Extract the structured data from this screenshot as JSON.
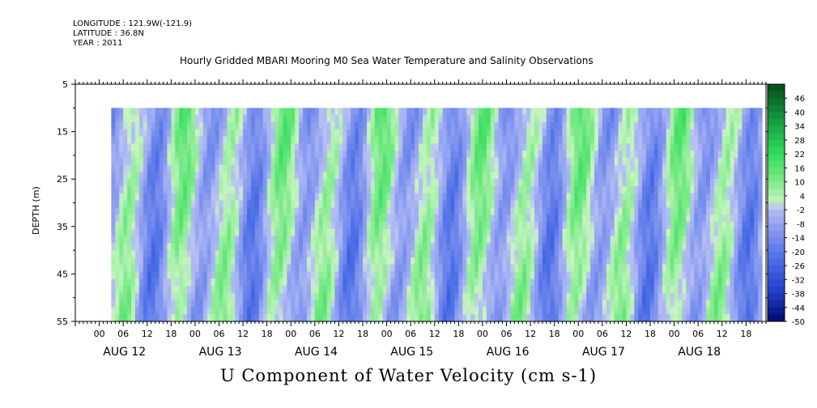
{
  "header": {
    "longitude": "LONGITUDE : 121.9W(-121.9)",
    "latitude": "LATITUDE : 36.8N",
    "year": "YEAR : 2011",
    "title": "Hourly Gridded MBARI Mooring M0 Sea Water Temperature and Salinity Observations"
  },
  "footer_title": "U Component of Water Velocity (cm s-1)",
  "chart_data": {
    "type": "heatmap",
    "title": "Hourly Gridded MBARI Mooring M0 Sea Water Temperature and Salinity Observations",
    "subtitle": "U Component of Water Velocity (cm s-1)",
    "ylabel": "DEPTH (m)",
    "xlabel": "",
    "y_axis": {
      "range": [
        5,
        55
      ],
      "inverted": true,
      "ticks": [
        "5",
        "15",
        "25",
        "35",
        "45",
        "55"
      ],
      "data_range": [
        10,
        55
      ]
    },
    "x_axis": {
      "start": "2011-08-11T18:00",
      "end": "2011-08-18T23:00",
      "hour_ticks": [
        "00",
        "06",
        "12",
        "18",
        "00",
        "06",
        "12",
        "18",
        "00",
        "06",
        "12",
        "18",
        "00",
        "06",
        "12",
        "18",
        "00",
        "06",
        "12",
        "18",
        "00",
        "06",
        "12",
        "18",
        "00",
        "06",
        "12",
        "18"
      ],
      "date_labels": [
        "AUG 12",
        "AUG 13",
        "AUG 14",
        "AUG 15",
        "AUG 16",
        "AUG 17",
        "AUG 18"
      ],
      "data_start": "2011-08-12T03:00"
    },
    "colorbar": {
      "levels": [
        "46",
        "40",
        "34",
        "28",
        "22",
        "16",
        "10",
        "4",
        "-2",
        "-8",
        "-14",
        "-20",
        "-26",
        "-32",
        "-38",
        "-44",
        "-50"
      ],
      "range": [
        -50,
        52
      ],
      "step": 6
    },
    "colors": {
      "negative_dark": "#0b1f9a",
      "negative_mid": "#5c7fe6",
      "negative_light": "#a9b6f0",
      "positive_light": "#b8f0b0",
      "positive_mid": "#3fde5e",
      "positive_dark": "#0c6b2a"
    }
  }
}
